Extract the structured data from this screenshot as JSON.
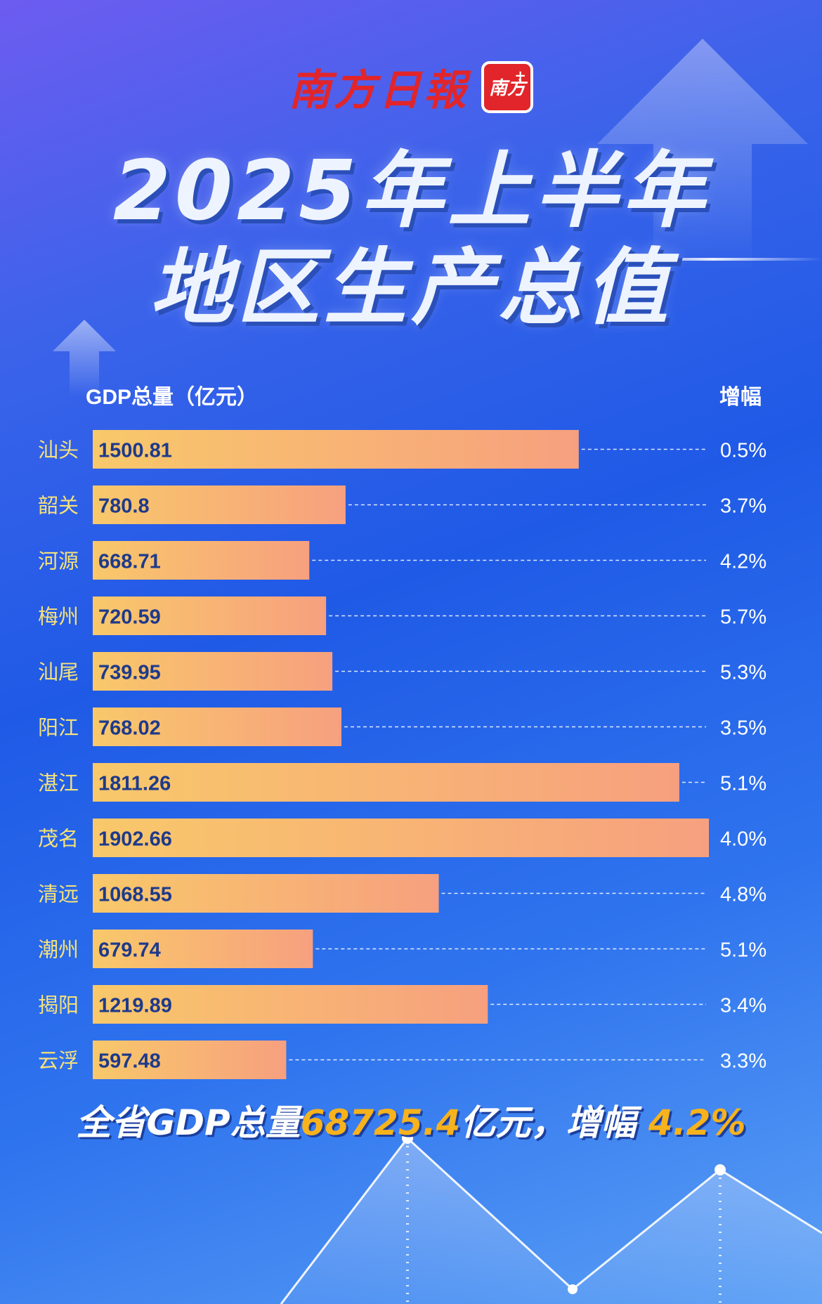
{
  "brand": {
    "name": "南方日報",
    "badge_text": "南方",
    "badge_plus": "+"
  },
  "title": {
    "line1": "2025年上半年",
    "line2": "地区生产总值"
  },
  "colors": {
    "bar_start": "#f8c86a",
    "bar_end": "#f7a07f",
    "city_label": "#f6e27a",
    "value_label": "#1e3a8a",
    "growth_label": "#ffffff",
    "highlight": "#f7b21c"
  },
  "chart_data": {
    "type": "bar",
    "orientation": "horizontal",
    "xlabel": "GDP总量（亿元）",
    "extra_column_label": "增幅",
    "categories": [
      "汕头",
      "韶关",
      "河源",
      "梅州",
      "汕尾",
      "阳江",
      "湛江",
      "茂名",
      "清远",
      "潮州",
      "揭阳",
      "云浮"
    ],
    "series": [
      {
        "values": [
          1500.81,
          780.8,
          668.71,
          720.59,
          739.95,
          768.02,
          1811.26,
          1902.66,
          1068.55,
          679.74,
          1219.89,
          597.48
        ]
      }
    ],
    "value_labels": [
      "1500.81",
      "780.8",
      "668.71",
      "720.59",
      "739.95",
      "768.02",
      "1811.26",
      "1902.66",
      "1068.55",
      "679.74",
      "1219.89",
      "597.48"
    ],
    "growth": [
      "0.5%",
      "3.7%",
      "4.2%",
      "5.7%",
      "5.3%",
      "3.5%",
      "5.1%",
      "4.0%",
      "4.8%",
      "5.1%",
      "3.4%",
      "3.3%"
    ],
    "xlim": [
      0,
      1902.66
    ],
    "grid": false,
    "legend": "none"
  },
  "summary": {
    "prefix": "全省GDP总量",
    "total": "68725.4",
    "middle": "亿元，增幅 ",
    "growth": "4.2%"
  }
}
